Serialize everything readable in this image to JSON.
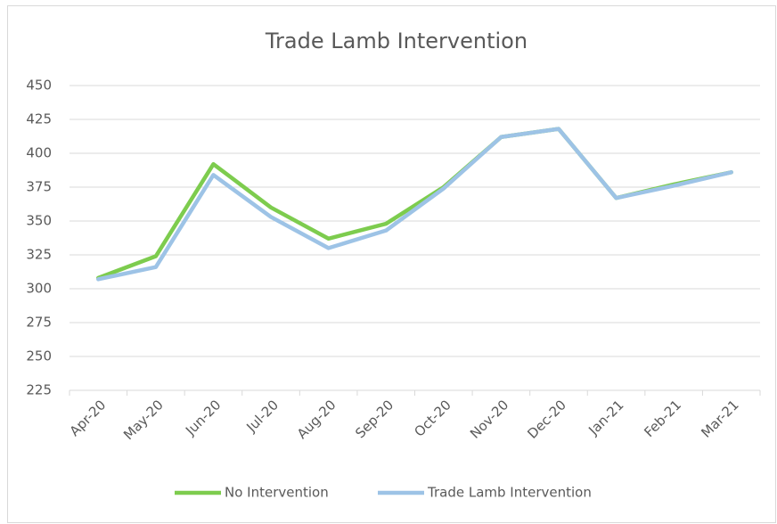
{
  "chart_data": {
    "type": "line",
    "title": "Trade Lamb Intervention",
    "categories": [
      "Apr-20",
      "May-20",
      "Jun-20",
      "Jul-20",
      "Aug-20",
      "Sep-20",
      "Oct-20",
      "Nov-20",
      "Dec-20",
      "Jan-21",
      "Feb-21",
      "Mar-21"
    ],
    "series": [
      {
        "name": "No Intervention",
        "color": "#7dcc4e",
        "values": [
          308,
          324,
          392,
          360,
          337,
          348,
          375,
          412,
          418,
          367,
          377,
          386
        ]
      },
      {
        "name": "Trade Lamb Intervention",
        "color": "#9dc3e6",
        "values": [
          307,
          316,
          384,
          353,
          330,
          343,
          374,
          412,
          418,
          367,
          376,
          386
        ]
      }
    ],
    "ylim": [
      225,
      450
    ],
    "yticks": [
      225,
      250,
      275,
      300,
      325,
      350,
      375,
      400,
      425,
      450
    ],
    "grid": true,
    "legend": "bottom"
  }
}
